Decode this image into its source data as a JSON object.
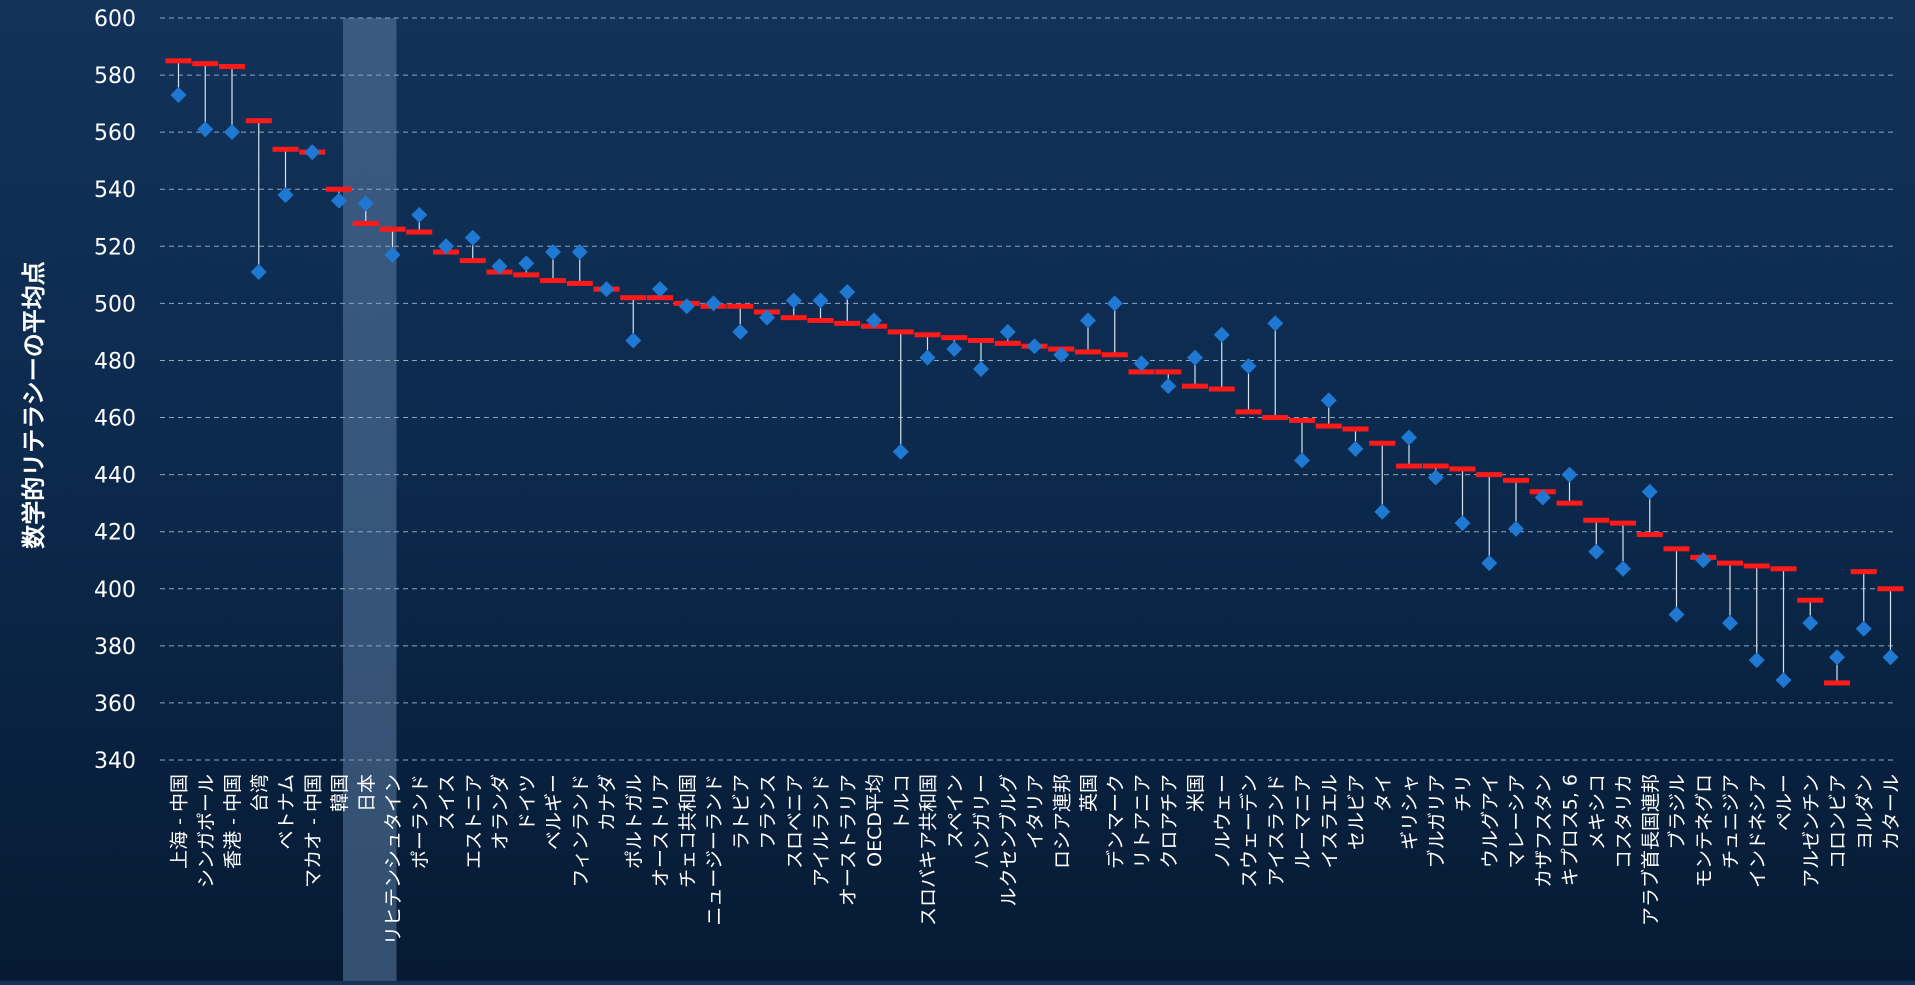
{
  "chart_data": {
    "type": "scatter",
    "ylabel": "数学的リテラシーの平均点",
    "ylim": [
      340,
      600
    ],
    "yticks": [
      340,
      360,
      380,
      400,
      420,
      440,
      460,
      480,
      500,
      520,
      540,
      560,
      580,
      600
    ],
    "grid": true,
    "highlight_category": "日本",
    "colors": {
      "diamond": "#1f78d1",
      "bar": "#ff1a1a",
      "stem": "#d9e2ec",
      "grid": "#8fa3bd",
      "highlight": "#5b7ba3"
    },
    "categories": [
      "上海 - 中国",
      "シンガポール",
      "香港 - 中国",
      "台湾",
      "ベトナム",
      "マカオ - 中国",
      "韓国",
      "日本",
      "リヒテンシュタイン",
      "ポーランド",
      "スイス",
      "エストニア",
      "オランダ",
      "ドイツ",
      "ベルギー",
      "フィンランド",
      "カナダ",
      "ポルトガル",
      "オーストリア",
      "チェコ共和国",
      "ニュージーランド",
      "ラトビア",
      "フランス",
      "スロベニア",
      "アイルランド",
      "オーストラリア",
      "OECD平均",
      "トルコ",
      "スロバキア共和国",
      "スペイン",
      "ハンガリー",
      "ルクセンブルグ",
      "イタリア",
      "ロシア連邦",
      "英国",
      "デンマーク",
      "リトアニア",
      "クロアチア",
      "米国",
      "ノルウェー",
      "スウェーデン",
      "アイスランド",
      "ルーマニア",
      "イスラエル",
      "セルビア",
      "タイ",
      "ギリシャ",
      "ブルガリア",
      "チリ",
      "ウルグアイ",
      "マレーシア",
      "カザフスタン",
      "キプロス5, 6",
      "メキシコ",
      "コスタリカ",
      "アラブ首長国連邦",
      "ブラジル",
      "モンテネグロ",
      "チュニジア",
      "インドネシア",
      "ペルー",
      "アルゼンチン",
      "コロンビア",
      "ヨルダン",
      "カタール"
    ],
    "series": [
      {
        "values": [
          585,
          584,
          583,
          564,
          554,
          553,
          540,
          528,
          526,
          525,
          518,
          515,
          511,
          510,
          508,
          507,
          505,
          502,
          502,
          500,
          499,
          499,
          497,
          495,
          494,
          493,
          492,
          490,
          489,
          488,
          487,
          486,
          485,
          484,
          483,
          482,
          476,
          476,
          471,
          470,
          462,
          460,
          459,
          457,
          456,
          451,
          443,
          443,
          442,
          440,
          438,
          434,
          430,
          424,
          423,
          419,
          414,
          411,
          409,
          408,
          407,
          396,
          367,
          406,
          400
        ]
      },
      {
        "values": [
          573,
          561,
          560,
          511,
          538,
          553,
          536,
          535,
          517,
          531,
          520,
          523,
          513,
          514,
          518,
          518,
          505,
          487,
          505,
          499,
          500,
          490,
          495,
          501,
          501,
          504,
          494,
          448,
          481,
          484,
          477,
          490,
          485,
          482,
          494,
          500,
          479,
          471,
          481,
          489,
          478,
          493,
          445,
          466,
          449,
          427,
          453,
          439,
          423,
          409,
          421,
          432,
          440,
          413,
          407,
          434,
          391,
          410,
          388,
          375,
          368,
          388,
          376,
          386,
          376
        ]
      }
    ]
  }
}
